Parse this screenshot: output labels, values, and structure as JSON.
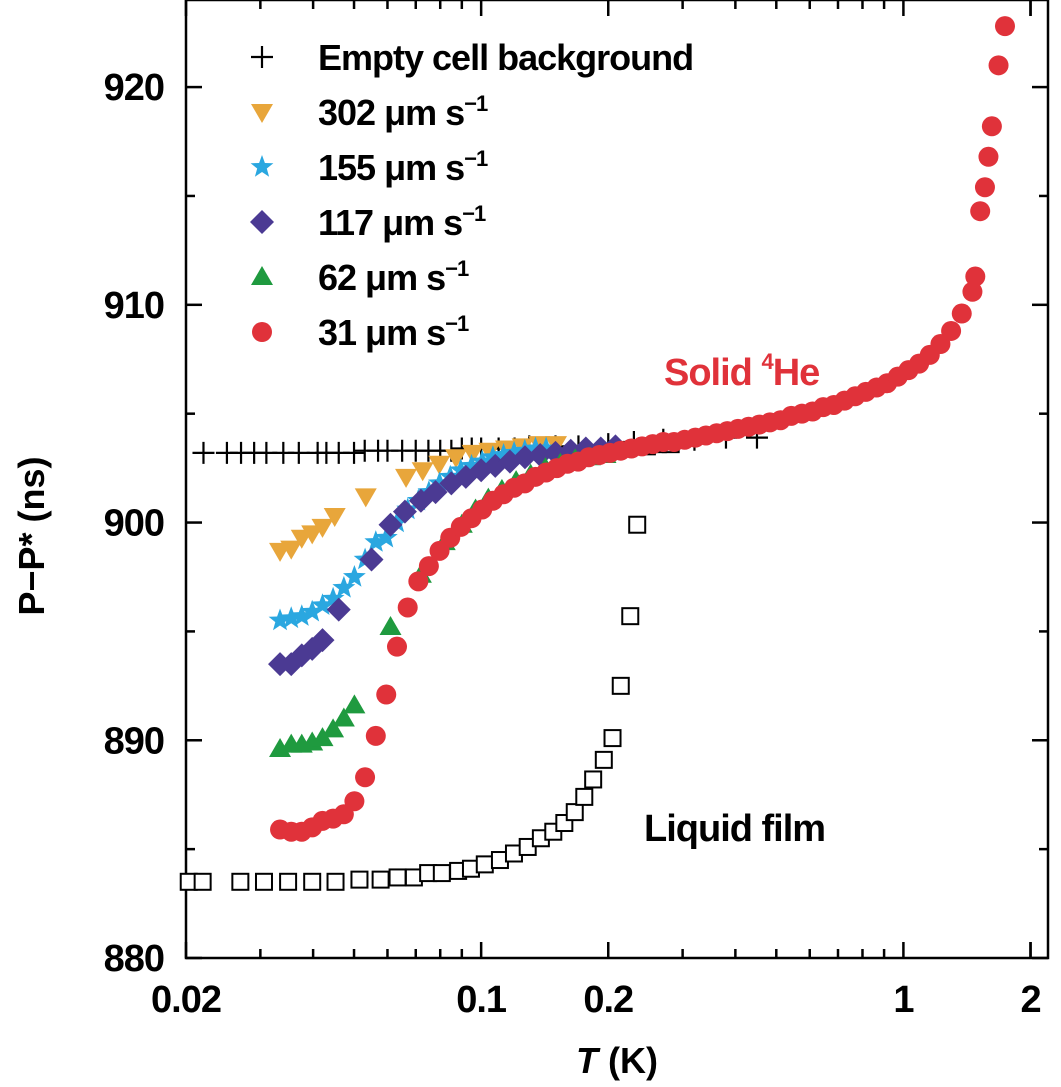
{
  "chart_data": {
    "type": "scatter",
    "xlabel": "T (K)",
    "xlabel_italic": "T",
    "xlabel_unit": "(K)",
    "ylabel": "P−P* (ns)",
    "x_scale": "log",
    "xlim": [
      0.02,
      2.2
    ],
    "ylim": [
      880,
      924
    ],
    "x_ticks": [
      {
        "value": 0.02,
        "label": "0.02"
      },
      {
        "value": 0.1,
        "label": "0.1"
      },
      {
        "value": 0.2,
        "label": "0.2"
      },
      {
        "value": 1,
        "label": "1"
      },
      {
        "value": 2,
        "label": "2"
      }
    ],
    "y_ticks": [
      {
        "value": 880,
        "label": "880"
      },
      {
        "value": 890,
        "label": "890"
      },
      {
        "value": 900,
        "label": "900"
      },
      {
        "value": 910,
        "label": "910"
      },
      {
        "value": 920,
        "label": "920"
      }
    ],
    "legend_position": "top-left",
    "series": [
      {
        "name": "Empty cell background",
        "marker": "plus",
        "color": "#000000",
        "points": [
          [
            0.022,
            903.2
          ],
          [
            0.025,
            903.2
          ],
          [
            0.027,
            903.2
          ],
          [
            0.029,
            903.2
          ],
          [
            0.031,
            903.2
          ],
          [
            0.034,
            903.2
          ],
          [
            0.037,
            903.2
          ],
          [
            0.041,
            903.2
          ],
          [
            0.043,
            903.2
          ],
          [
            0.046,
            903.2
          ],
          [
            0.05,
            903.2
          ],
          [
            0.053,
            903.3
          ],
          [
            0.057,
            903.3
          ],
          [
            0.06,
            903.3
          ],
          [
            0.065,
            903.3
          ],
          [
            0.07,
            903.3
          ],
          [
            0.075,
            903.3
          ],
          [
            0.08,
            903.3
          ],
          [
            0.085,
            903.3
          ],
          [
            0.09,
            903.4
          ],
          [
            0.095,
            903.4
          ],
          [
            0.1,
            903.4
          ],
          [
            0.11,
            903.4
          ],
          [
            0.12,
            903.4
          ],
          [
            0.13,
            903.5
          ],
          [
            0.15,
            903.5
          ],
          [
            0.17,
            903.5
          ],
          [
            0.2,
            903.6
          ],
          [
            0.23,
            903.7
          ],
          [
            0.27,
            903.8
          ],
          [
            0.32,
            903.8
          ],
          [
            0.38,
            903.9
          ],
          [
            0.45,
            903.9
          ]
        ]
      },
      {
        "name": "302 μm s⁻¹",
        "label_base": "302 μm s",
        "label_sup": "−1",
        "marker": "triangle-down",
        "color": "#e8a63b",
        "points": [
          [
            0.0334,
            898.7
          ],
          [
            0.0355,
            898.8
          ],
          [
            0.0376,
            899.3
          ],
          [
            0.0398,
            899.5
          ],
          [
            0.0421,
            899.8
          ],
          [
            0.045,
            900.3
          ],
          [
            0.0533,
            901.2
          ],
          [
            0.0664,
            902.1
          ],
          [
            0.0727,
            902.4
          ],
          [
            0.0796,
            902.7
          ],
          [
            0.0872,
            903.0
          ],
          [
            0.0955,
            903.2
          ],
          [
            0.1046,
            903.3
          ],
          [
            0.1145,
            903.4
          ],
          [
            0.1254,
            903.5
          ],
          [
            0.1373,
            903.6
          ],
          [
            0.1504,
            903.6
          ]
        ]
      },
      {
        "name": "155 μm s⁻¹",
        "label_base": "155 μm s",
        "label_sup": "−1",
        "marker": "star",
        "color": "#2aa7e0",
        "points": [
          [
            0.0334,
            895.5
          ],
          [
            0.0355,
            895.6
          ],
          [
            0.0376,
            895.7
          ],
          [
            0.0398,
            895.9
          ],
          [
            0.0421,
            896.2
          ],
          [
            0.0446,
            896.5
          ],
          [
            0.0473,
            897.0
          ],
          [
            0.0501,
            897.5
          ],
          [
            0.0531,
            898.3
          ],
          [
            0.0563,
            899.1
          ],
          [
            0.0596,
            899.3
          ],
          [
            0.0632,
            900.0
          ],
          [
            0.067,
            900.6
          ],
          [
            0.071,
            901.0
          ],
          [
            0.0752,
            901.4
          ],
          [
            0.0797,
            901.8
          ],
          [
            0.0845,
            902.1
          ],
          [
            0.0895,
            902.4
          ],
          [
            0.0949,
            902.6
          ],
          [
            0.1006,
            902.8
          ],
          [
            0.1066,
            903.0
          ],
          [
            0.113,
            903.1
          ],
          [
            0.1197,
            903.2
          ],
          [
            0.1269,
            903.3
          ],
          [
            0.1345,
            903.4
          ],
          [
            0.1425,
            903.4
          ]
        ]
      },
      {
        "name": "117 μm s⁻¹",
        "label_base": "117 μm s",
        "label_sup": "−1",
        "marker": "diamond",
        "color": "#4b3a93",
        "points": [
          [
            0.0334,
            893.5
          ],
          [
            0.0355,
            893.5
          ],
          [
            0.0376,
            893.9
          ],
          [
            0.0398,
            894.2
          ],
          [
            0.0421,
            894.6
          ],
          [
            0.046,
            896.0
          ],
          [
            0.055,
            898.3
          ],
          [
            0.061,
            899.9
          ],
          [
            0.066,
            900.5
          ],
          [
            0.072,
            901.0
          ],
          [
            0.078,
            901.4
          ],
          [
            0.085,
            901.8
          ],
          [
            0.092,
            902.1
          ],
          [
            0.1,
            902.4
          ],
          [
            0.108,
            902.6
          ],
          [
            0.117,
            902.8
          ],
          [
            0.127,
            903.0
          ],
          [
            0.138,
            903.1
          ],
          [
            0.15,
            903.2
          ],
          [
            0.163,
            903.3
          ],
          [
            0.177,
            903.4
          ],
          [
            0.192,
            903.4
          ],
          [
            0.208,
            903.5
          ]
        ]
      },
      {
        "name": "62 μm s⁻¹",
        "label_base": "62 μm s",
        "label_sup": "−1",
        "marker": "triangle-up",
        "color": "#1f9a3f",
        "points": [
          [
            0.0334,
            889.6
          ],
          [
            0.0355,
            889.8
          ],
          [
            0.0376,
            889.8
          ],
          [
            0.0398,
            889.9
          ],
          [
            0.0421,
            890.1
          ],
          [
            0.0446,
            890.5
          ],
          [
            0.0473,
            891.0
          ],
          [
            0.0501,
            891.6
          ],
          [
            0.061,
            895.2
          ],
          [
            0.072,
            897.6
          ],
          [
            0.082,
            899.1
          ],
          [
            0.09,
            899.9
          ],
          [
            0.097,
            900.6
          ],
          [
            0.104,
            901.1
          ],
          [
            0.112,
            901.5
          ],
          [
            0.121,
            901.9
          ],
          [
            0.131,
            902.2
          ],
          [
            0.142,
            902.5
          ],
          [
            0.154,
            902.7
          ],
          [
            0.167,
            902.9
          ],
          [
            0.181,
            903.0
          ],
          [
            0.197,
            903.1
          ]
        ]
      },
      {
        "name": "31 μm s⁻¹",
        "label_base": "31 μm s",
        "label_sup": "−1",
        "marker": "circle",
        "color": "#e0323a",
        "points": [
          [
            0.0334,
            885.9
          ],
          [
            0.0355,
            885.8
          ],
          [
            0.0376,
            885.8
          ],
          [
            0.0398,
            886.0
          ],
          [
            0.0421,
            886.3
          ],
          [
            0.0446,
            886.4
          ],
          [
            0.0473,
            886.6
          ],
          [
            0.0501,
            887.2
          ],
          [
            0.0531,
            888.3
          ],
          [
            0.0563,
            890.2
          ],
          [
            0.0596,
            892.1
          ],
          [
            0.0632,
            894.3
          ],
          [
            0.067,
            896.1
          ],
          [
            0.071,
            897.3
          ],
          [
            0.0752,
            898.0
          ],
          [
            0.0797,
            898.7
          ],
          [
            0.0845,
            899.3
          ],
          [
            0.0895,
            899.8
          ],
          [
            0.0949,
            900.2
          ],
          [
            0.1006,
            900.6
          ],
          [
            0.1066,
            901.0
          ],
          [
            0.113,
            901.3
          ],
          [
            0.1197,
            901.6
          ],
          [
            0.1269,
            901.8
          ],
          [
            0.1345,
            902.1
          ],
          [
            0.1425,
            902.3
          ],
          [
            0.1511,
            902.5
          ],
          [
            0.1601,
            902.7
          ],
          [
            0.1697,
            902.8
          ],
          [
            0.1798,
            903.0
          ],
          [
            0.1906,
            903.1
          ],
          [
            0.202,
            903.2
          ],
          [
            0.2141,
            903.3
          ],
          [
            0.2269,
            903.4
          ],
          [
            0.2405,
            903.5
          ],
          [
            0.2549,
            903.6
          ],
          [
            0.2701,
            903.7
          ],
          [
            0.2863,
            903.7
          ],
          [
            0.3034,
            903.8
          ],
          [
            0.3216,
            903.9
          ],
          [
            0.3408,
            904.0
          ],
          [
            0.3612,
            904.1
          ],
          [
            0.3828,
            904.2
          ],
          [
            0.4057,
            904.3
          ],
          [
            0.43,
            904.4
          ],
          [
            0.4557,
            904.5
          ],
          [
            0.483,
            904.6
          ],
          [
            0.5119,
            904.7
          ],
          [
            0.5425,
            904.9
          ],
          [
            0.575,
            905.0
          ],
          [
            0.6094,
            905.1
          ],
          [
            0.6458,
            905.3
          ],
          [
            0.6845,
            905.4
          ],
          [
            0.7254,
            905.6
          ],
          [
            0.7688,
            905.8
          ],
          [
            0.8148,
            906.0
          ],
          [
            0.8636,
            906.2
          ],
          [
            0.9152,
            906.4
          ],
          [
            0.97,
            906.7
          ],
          [
            1.028,
            907.0
          ],
          [
            1.0895,
            907.3
          ],
          [
            1.1547,
            907.7
          ],
          [
            1.2238,
            908.2
          ],
          [
            1.297,
            908.8
          ],
          [
            1.3746,
            909.6
          ],
          [
            1.457,
            910.6
          ],
          [
            1.48,
            911.3
          ],
          [
            1.52,
            914.3
          ],
          [
            1.56,
            915.4
          ],
          [
            1.59,
            916.8
          ],
          [
            1.62,
            918.2
          ],
          [
            1.68,
            921.0
          ],
          [
            1.74,
            922.8
          ]
        ]
      },
      {
        "name": "Liquid film",
        "legend": false,
        "marker": "square-open",
        "color": "#000000",
        "points": [
          [
            0.0203,
            883.5
          ],
          [
            0.0219,
            883.5
          ],
          [
            0.0269,
            883.5
          ],
          [
            0.0306,
            883.5
          ],
          [
            0.0349,
            883.5
          ],
          [
            0.0398,
            883.5
          ],
          [
            0.0452,
            883.5
          ],
          [
            0.0515,
            883.6
          ],
          [
            0.0578,
            883.6
          ],
          [
            0.0634,
            883.7
          ],
          [
            0.0693,
            883.7
          ],
          [
            0.0749,
            883.9
          ],
          [
            0.0807,
            883.9
          ],
          [
            0.0882,
            884.0
          ],
          [
            0.0946,
            884.1
          ],
          [
            0.102,
            884.3
          ],
          [
            0.1108,
            884.5
          ],
          [
            0.1196,
            884.8
          ],
          [
            0.1289,
            885.1
          ],
          [
            0.1385,
            885.5
          ],
          [
            0.1482,
            885.8
          ],
          [
            0.1574,
            886.2
          ],
          [
            0.1666,
            886.7
          ],
          [
            0.1755,
            887.4
          ],
          [
            0.1842,
            888.2
          ],
          [
            0.1952,
            889.1
          ],
          [
            0.2047,
            890.1
          ],
          [
            0.2141,
            892.5
          ],
          [
            0.2255,
            895.7
          ],
          [
            0.2342,
            899.9
          ],
          [
            0.2469,
            903.5
          ],
          [
            0.2621,
            903.6
          ],
          [
            0.2811,
            903.6
          ]
        ]
      }
    ],
    "annotations": [
      {
        "id": "solid",
        "base": "Solid ",
        "sup": "4",
        "after": "He",
        "color": "#e0323a"
      },
      {
        "id": "liquid",
        "text": "Liquid film",
        "color": "#000000"
      }
    ]
  }
}
